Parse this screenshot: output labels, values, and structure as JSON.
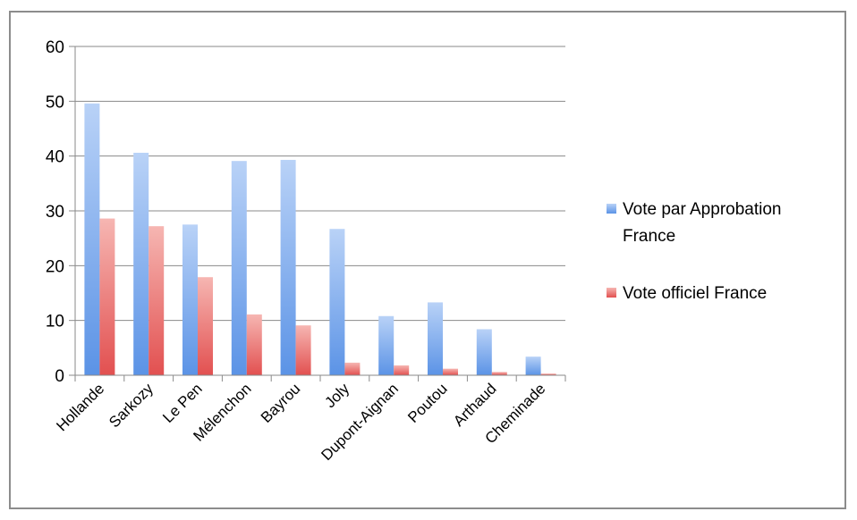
{
  "chart_data": {
    "type": "bar",
    "categories": [
      "Hollande",
      "Sarkozy",
      "Le Pen",
      "Mélenchon",
      "Bayrou",
      "Joly",
      "Dupont-Aignan",
      "Poutou",
      "Arthaud",
      "Cheminade"
    ],
    "series": [
      {
        "name": "Vote par Approbation France",
        "legend_lines": [
          "Vote par Approbation",
          "France"
        ],
        "color": "#5b93e6",
        "color_light": "#b9d2f7",
        "values": [
          49.6,
          40.6,
          27.5,
          39.1,
          39.3,
          26.7,
          10.8,
          13.3,
          8.4,
          3.4
        ]
      },
      {
        "name": "Vote officiel France",
        "legend_lines": [
          "Vote officiel France"
        ],
        "color": "#e25050",
        "color_light": "#f6b6b2",
        "values": [
          28.6,
          27.2,
          17.9,
          11.1,
          9.1,
          2.3,
          1.8,
          1.2,
          0.6,
          0.3
        ]
      }
    ],
    "yticks": [
      "0",
      "10",
      "20",
      "30",
      "40",
      "50",
      "60"
    ],
    "ylim": [
      0,
      60
    ],
    "grid": true,
    "legend_position": "right"
  }
}
